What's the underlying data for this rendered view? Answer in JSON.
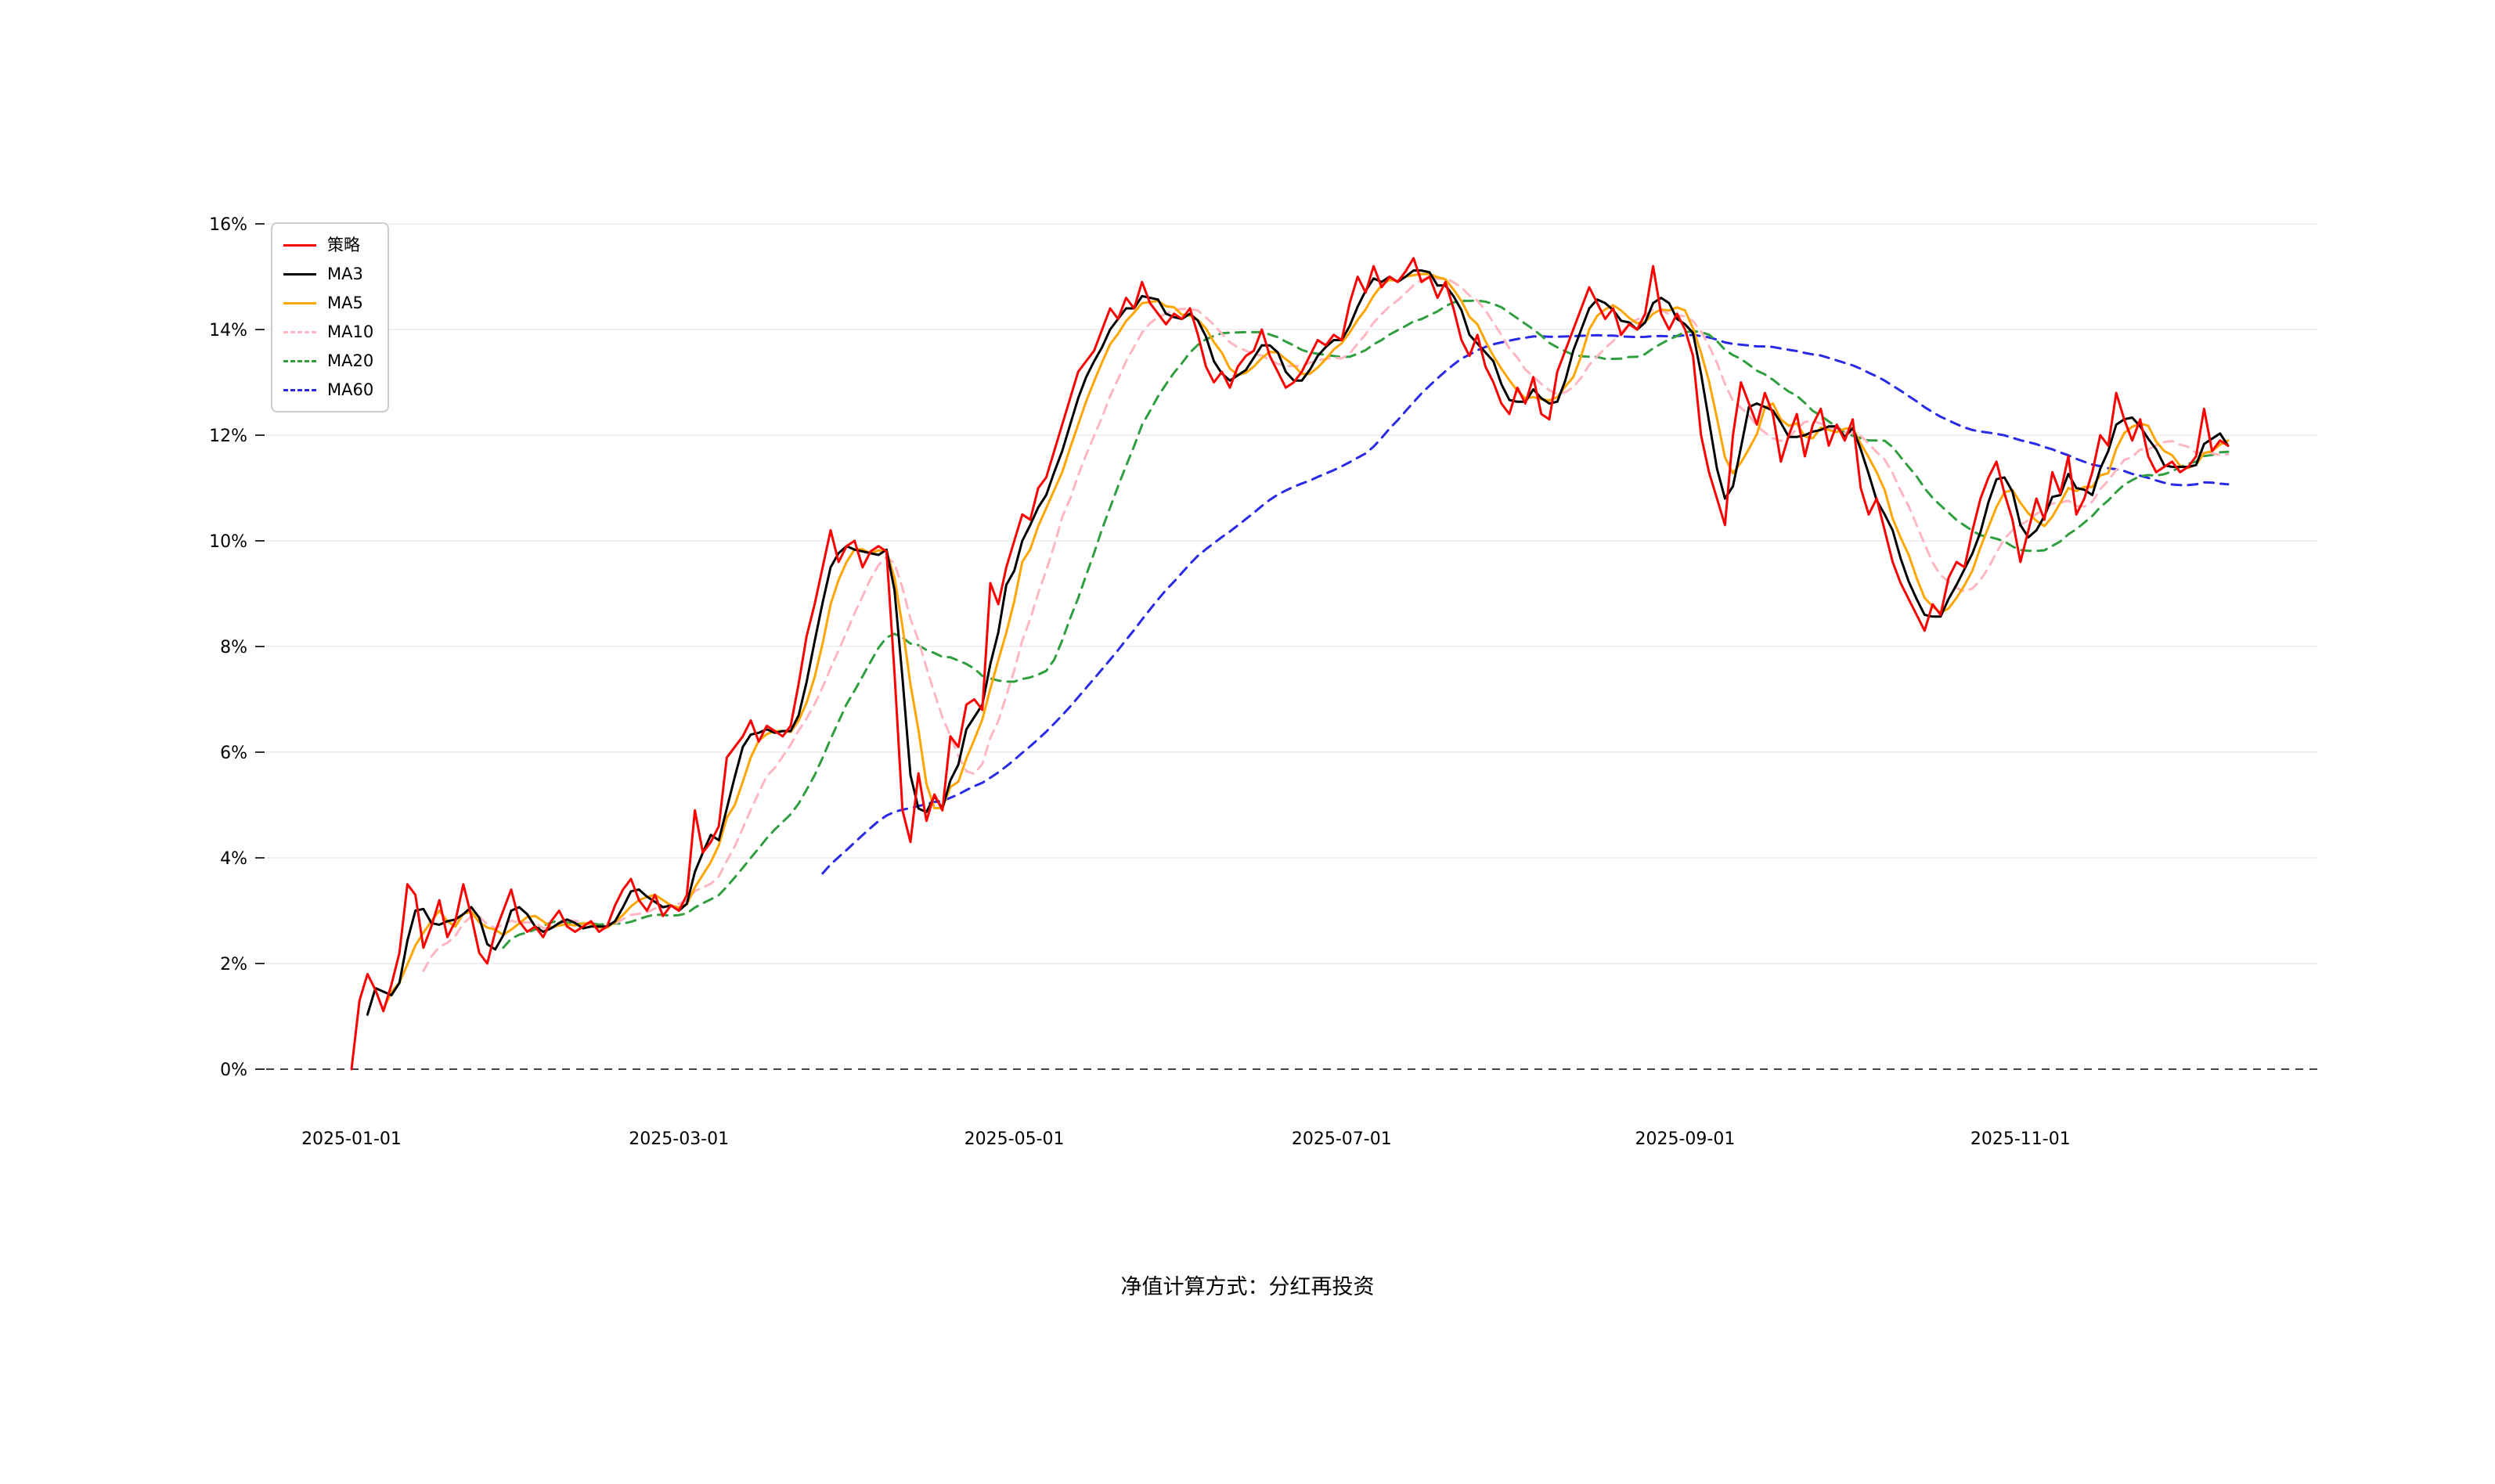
{
  "page": {
    "caption": "净值计算方式：分红再投资"
  },
  "chart_data": {
    "type": "line",
    "title": "",
    "xlabel": "",
    "ylabel": "",
    "ylim": [
      0,
      16
    ],
    "y_ticks": [
      0,
      2,
      4,
      6,
      8,
      10,
      12,
      14,
      16
    ],
    "y_tick_suffix": "%",
    "x_ticks": [
      {
        "label": "2025-01-01",
        "index": 0
      },
      {
        "label": "2025-03-01",
        "index": 41
      },
      {
        "label": "2025-05-01",
        "index": 83
      },
      {
        "label": "2025-07-01",
        "index": 124
      },
      {
        "label": "2025-09-01",
        "index": 167
      },
      {
        "label": "2025-11-01",
        "index": 209
      }
    ],
    "grid": true,
    "zero_line_dashed": true,
    "legend_position": "top-left",
    "x_unit": "trading-day-index",
    "n_points": 236,
    "series": [
      {
        "name": "策略",
        "color": "#ff0000",
        "style": "solid",
        "kind": "raw",
        "values": [
          0.0,
          1.3,
          1.8,
          1.5,
          1.1,
          1.6,
          2.2,
          3.5,
          3.3,
          2.3,
          2.7,
          3.2,
          2.5,
          2.8,
          3.5,
          2.9,
          2.2,
          2.0,
          2.6,
          3.0,
          3.4,
          2.8,
          2.6,
          2.7,
          2.5,
          2.8,
          3.0,
          2.7,
          2.6,
          2.7,
          2.8,
          2.6,
          2.7,
          3.1,
          3.4,
          3.6,
          3.2,
          3.0,
          3.3,
          2.9,
          3.1,
          3.0,
          3.3,
          4.9,
          4.1,
          4.3,
          4.6,
          5.9,
          6.1,
          6.3,
          6.6,
          6.2,
          6.5,
          6.4,
          6.3,
          6.5,
          7.3,
          8.2,
          8.8,
          9.5,
          10.2,
          9.6,
          9.9,
          10.0,
          9.5,
          9.8,
          9.9,
          9.8,
          7.5,
          4.9,
          4.3,
          5.6,
          4.7,
          5.2,
          4.9,
          6.3,
          6.1,
          6.9,
          7.0,
          6.8,
          9.2,
          8.8,
          9.5,
          10.0,
          10.5,
          10.4,
          11.0,
          11.2,
          11.7,
          12.2,
          12.7,
          13.2,
          13.4,
          13.6,
          14.0,
          14.4,
          14.2,
          14.6,
          14.4,
          14.9,
          14.5,
          14.3,
          14.1,
          14.3,
          14.2,
          14.4,
          13.9,
          13.3,
          13.0,
          13.2,
          12.9,
          13.3,
          13.5,
          13.6,
          14.0,
          13.5,
          13.2,
          12.9,
          13.0,
          13.2,
          13.5,
          13.8,
          13.7,
          13.9,
          13.8,
          14.5,
          15.0,
          14.7,
          15.2,
          14.8,
          15.0,
          14.9,
          15.1,
          15.35,
          14.9,
          15.0,
          14.6,
          14.9,
          14.4,
          13.8,
          13.5,
          13.9,
          13.3,
          13.0,
          12.6,
          12.4,
          12.9,
          12.6,
          13.1,
          12.4,
          12.3,
          13.2,
          13.6,
          14.0,
          14.4,
          14.8,
          14.5,
          14.2,
          14.4,
          13.9,
          14.1,
          14.0,
          14.3,
          15.2,
          14.3,
          14.0,
          14.3,
          14.0,
          13.5,
          12.0,
          11.3,
          10.8,
          10.3,
          12.0,
          13.0,
          12.6,
          12.2,
          12.8,
          12.4,
          11.5,
          12.0,
          12.4,
          11.6,
          12.2,
          12.5,
          11.8,
          12.2,
          11.9,
          12.3,
          11.0,
          10.5,
          10.8,
          10.2,
          9.6,
          9.2,
          8.9,
          8.6,
          8.3,
          8.8,
          8.6,
          9.3,
          9.6,
          9.5,
          10.2,
          10.8,
          11.2,
          11.5,
          10.9,
          10.4,
          9.6,
          10.2,
          10.8,
          10.4,
          11.3,
          10.9,
          11.6,
          10.5,
          10.8,
          11.3,
          12.0,
          11.8,
          12.8,
          12.3,
          11.9,
          12.3,
          11.6,
          11.3,
          11.4,
          11.5,
          11.3,
          11.4,
          11.6,
          12.5,
          11.7,
          11.9,
          11.8
        ]
      },
      {
        "name": "MA3",
        "color": "#000000",
        "style": "solid",
        "kind": "moving-average",
        "window": 3,
        "derived_from": "策略"
      },
      {
        "name": "MA5",
        "color": "#ffa500",
        "style": "solid",
        "kind": "moving-average",
        "window": 5,
        "derived_from": "策略"
      },
      {
        "name": "MA10",
        "color": "#ffb6c1",
        "style": "dashed",
        "kind": "moving-average",
        "window": 10,
        "derived_from": "策略"
      },
      {
        "name": "MA20",
        "color": "#2e9e3f",
        "style": "dashed",
        "kind": "moving-average",
        "window": 20,
        "derived_from": "策略"
      },
      {
        "name": "MA60",
        "color": "#2929e8",
        "style": "dashed",
        "kind": "moving-average",
        "window": 60,
        "derived_from": "策略"
      }
    ]
  }
}
